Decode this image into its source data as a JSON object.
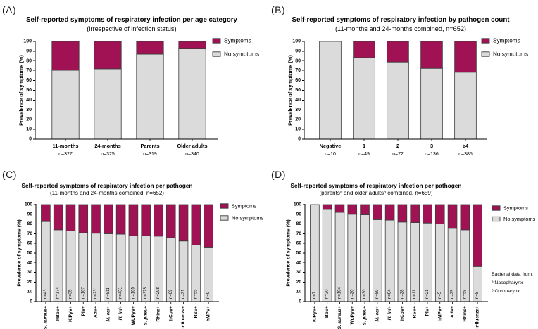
{
  "figure": {
    "legend": {
      "symptoms": "Symptoms",
      "no_symptoms": "No symptoms"
    },
    "colors": {
      "symptoms": "#A01253",
      "no_symptoms": "#DBDBDB",
      "bar_border": "#3A3A3A",
      "axis": "#000000"
    }
  },
  "chart_data": [
    {
      "letter": "(A)",
      "type": "bar",
      "stacked": true,
      "title": "Self-reported symptoms of respiratory infection per age category",
      "subtitle": "(irrespective of infection status)",
      "ylabel": "Prevalence of symptoms (%)",
      "ylim": [
        0,
        100
      ],
      "ytick_step": 10,
      "legend_position": "right-top",
      "categories": [
        "11-months",
        "24-months",
        "Parents",
        "Older adults"
      ],
      "n_labels": [
        "n=327",
        "n=325",
        "n=319",
        "n=340"
      ],
      "series": [
        {
          "name": "No symptoms",
          "values": [
            70.5,
            72,
            87,
            93
          ]
        },
        {
          "name": "Symptoms",
          "values": [
            29.5,
            28,
            13,
            7
          ]
        }
      ]
    },
    {
      "letter": "(B)",
      "type": "bar",
      "stacked": true,
      "title": "Self-reported symptoms of respiratory infection by pathogen count",
      "subtitle": "(11-months and 24-months combined, n=652)",
      "ylabel": "Prevalence of symptoms (%)",
      "ylim": [
        0,
        100
      ],
      "ytick_step": 10,
      "legend_position": "right-top",
      "categories": [
        "Negative",
        "1",
        "2",
        "3",
        "≥4"
      ],
      "n_labels": [
        "n=10",
        "n=49",
        "n=72",
        "n=136",
        "n=385"
      ],
      "series": [
        {
          "name": "No symptoms",
          "values": [
            100,
            83.5,
            79,
            72.5,
            68.5
          ]
        },
        {
          "name": "Symptoms",
          "values": [
            0,
            16.5,
            21,
            27.5,
            31.5
          ]
        }
      ]
    },
    {
      "letter": "(C)",
      "type": "bar",
      "stacked": true,
      "title": "Self-reported symptoms of respiratory infection per pathogen",
      "subtitle": "(11-months and 24-months combined, n=652)",
      "ylabel": "Prevalence of symptoms (%)",
      "ylim": [
        0,
        100
      ],
      "ytick_step": 10,
      "legend_position": "right-top",
      "xlabels_rotated": true,
      "categories": [
        "S. aureus+",
        "hBoV+",
        "KIPyV+",
        "PIV+",
        "AdV+",
        "M. cat+",
        "H. inf+",
        "WUPyV+",
        "S. pneu+",
        "Rhino+",
        "hCoV+",
        "Influenza+",
        "RSV+",
        "hMPV+"
      ],
      "italic": [
        true,
        false,
        false,
        false,
        false,
        true,
        true,
        false,
        true,
        false,
        false,
        false,
        false,
        false
      ],
      "n_labels": [
        "n=43",
        "n=174",
        "n=35",
        "n=107",
        "n=231",
        "n=511",
        "n=431",
        "n=105",
        "n=375",
        "n=298",
        "n=89",
        "n=21",
        "n=55",
        "n=9"
      ],
      "series": [
        {
          "name": "No symptoms",
          "values": [
            82.5,
            74,
            73,
            71,
            70.5,
            70,
            69.5,
            68,
            68,
            67.5,
            66,
            62.5,
            58.5,
            55.5
          ]
        },
        {
          "name": "Symptoms",
          "values": [
            17.5,
            26,
            27,
            29,
            29.5,
            30,
            30.5,
            32,
            32,
            32.5,
            34,
            37.5,
            41.5,
            44.5
          ]
        }
      ]
    },
    {
      "letter": "(D)",
      "type": "bar",
      "stacked": true,
      "title": "Self-reported symptoms of respiratory infection per pathogen",
      "subtitle": "(parentsᵃ and older adultsᵇ combined, n=659)",
      "ylabel": "Prevalence of symptoms (%)",
      "ylim": [
        0,
        100
      ],
      "ytick_step": 10,
      "legend_position": "right-top",
      "xlabels_rotated": true,
      "categories": [
        "KiPyV+",
        "BoV+",
        "S. aureus+",
        "WuPyV+",
        "S. pneu+",
        "M. cat+",
        "H. inf+",
        "hCoV+",
        "RSV+",
        "PIV+",
        "hMPV+",
        "AdV+",
        "Rhino+",
        "Influenza+"
      ],
      "italic": [
        false,
        false,
        true,
        false,
        true,
        true,
        true,
        false,
        false,
        false,
        false,
        false,
        false,
        false
      ],
      "n_labels": [
        "n=7",
        "n=20",
        "n=104",
        "n=20",
        "n=30",
        "n=59",
        "n=84",
        "n=28",
        "n=11",
        "n=21",
        "n=5",
        "n=29",
        "n=58",
        "n=8"
      ],
      "series": [
        {
          "name": "No symptoms",
          "values": [
            100,
            95,
            92,
            90,
            89.5,
            84.5,
            84,
            82,
            81.5,
            81,
            80,
            75.5,
            74,
            36
          ]
        },
        {
          "name": "Symptoms",
          "values": [
            0,
            5,
            8,
            10,
            10.5,
            15.5,
            16,
            18,
            18.5,
            19,
            20,
            24.5,
            26,
            64
          ]
        }
      ],
      "notes": [
        "Bacterial data from:",
        "ᵃ Nasopharynx",
        "ᵇ Oropharynx"
      ]
    }
  ]
}
